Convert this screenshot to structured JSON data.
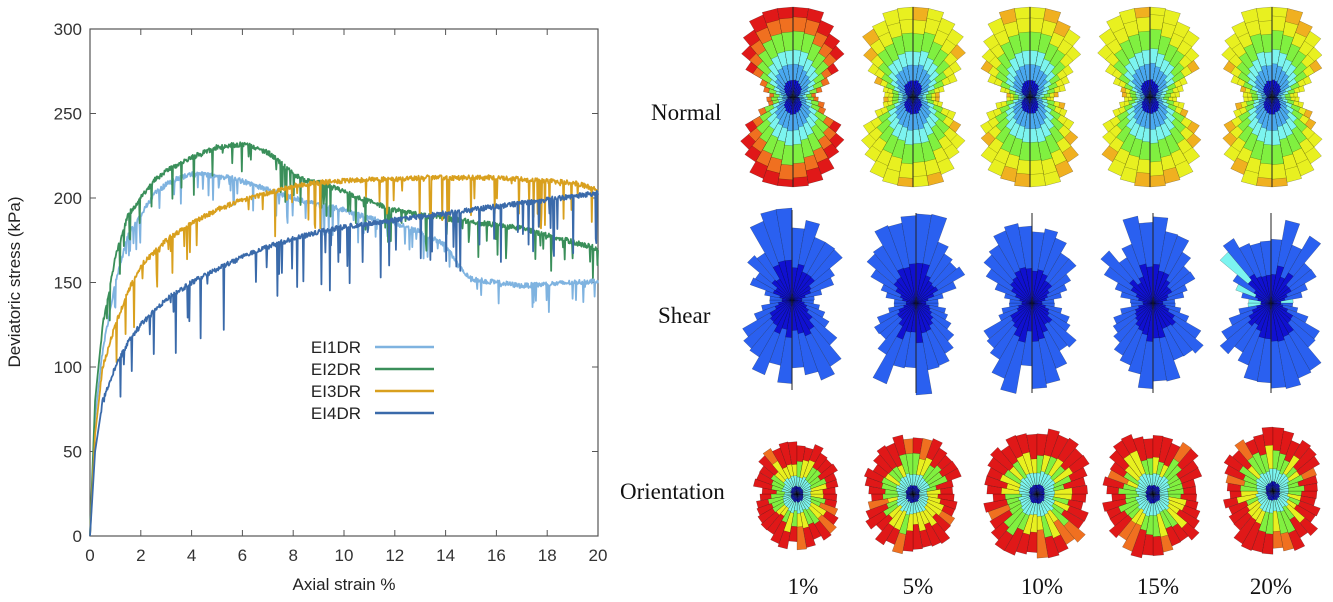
{
  "chart_data": [
    {
      "type": "line",
      "title": "",
      "xlabel": "Axial strain %",
      "ylabel": "Deviatoric stress (kPa)",
      "xlim": [
        0,
        20
      ],
      "ylim": [
        0,
        300
      ],
      "xticks": [
        "0",
        "2",
        "4",
        "6",
        "8",
        "10",
        "12",
        "14",
        "16",
        "18",
        "20"
      ],
      "yticks": [
        "0",
        "50",
        "100",
        "150",
        "200",
        "250",
        "300"
      ],
      "grid": false,
      "legend_position": "center",
      "series": [
        {
          "name": "EI1DR",
          "color": "#7fb3e0",
          "x": [
            0,
            0.2,
            0.5,
            1,
            1.5,
            2,
            2.5,
            3,
            3.5,
            4,
            4.5,
            5,
            5.5,
            6,
            7,
            8,
            9,
            10,
            11,
            12,
            13,
            14,
            14.5,
            15,
            16,
            17,
            18,
            19,
            20
          ],
          "y": [
            0,
            70,
            110,
            150,
            178,
            190,
            202,
            208,
            212,
            214,
            214,
            213,
            212,
            210,
            205,
            200,
            196,
            193,
            188,
            185,
            180,
            172,
            160,
            152,
            150,
            148,
            149,
            150,
            151
          ]
        },
        {
          "name": "EI2DR",
          "color": "#3a8f5a",
          "x": [
            0,
            0.2,
            0.5,
            1,
            1.5,
            2,
            2.5,
            3,
            3.5,
            4,
            4.5,
            5,
            5.5,
            6,
            6.5,
            7,
            7.5,
            8,
            8.5,
            9,
            10,
            11,
            12,
            13,
            14,
            15,
            16,
            17,
            18,
            19,
            20
          ],
          "y": [
            0,
            80,
            125,
            165,
            190,
            200,
            210,
            216,
            220,
            224,
            227,
            230,
            231,
            232,
            230,
            227,
            221,
            214,
            210,
            209,
            204,
            198,
            193,
            190,
            188,
            186,
            184,
            182,
            178,
            174,
            170
          ]
        },
        {
          "name": "EI3DR",
          "color": "#d9a01e",
          "x": [
            0,
            0.2,
            0.5,
            1,
            1.5,
            2,
            3,
            4,
            5,
            6,
            7,
            8,
            9,
            10,
            11,
            12,
            13,
            14,
            15,
            16,
            17,
            18,
            19,
            20
          ],
          "y": [
            0,
            60,
            100,
            125,
            145,
            160,
            175,
            185,
            193,
            199,
            203,
            207,
            209,
            210,
            211,
            211,
            212,
            212,
            212,
            212,
            211,
            210,
            209,
            205
          ]
        },
        {
          "name": "EI4DR",
          "color": "#3a6aaa",
          "x": [
            0,
            0.2,
            0.5,
            1,
            1.5,
            2,
            3,
            4,
            5,
            6,
            7,
            8,
            9,
            10,
            11,
            12,
            13,
            14,
            15,
            16,
            17,
            18,
            19,
            20
          ],
          "y": [
            0,
            50,
            80,
            100,
            115,
            125,
            140,
            150,
            158,
            165,
            171,
            176,
            180,
            183,
            185,
            187,
            189,
            191,
            193,
            195,
            197,
            199,
            201,
            203
          ]
        }
      ]
    },
    {
      "type": "other",
      "row_labels": [
        "Normal",
        "Shear",
        "Orientation"
      ],
      "column_labels": [
        "1%",
        "5%",
        "10%",
        "15%",
        "20%"
      ],
      "color_scale": [
        "#1010d0",
        "#2a60f0",
        "#4aa8f0",
        "#7cf4f0",
        "#80f040",
        "#e8f020",
        "#f0b020",
        "#f07020",
        "#e01818"
      ]
    }
  ]
}
